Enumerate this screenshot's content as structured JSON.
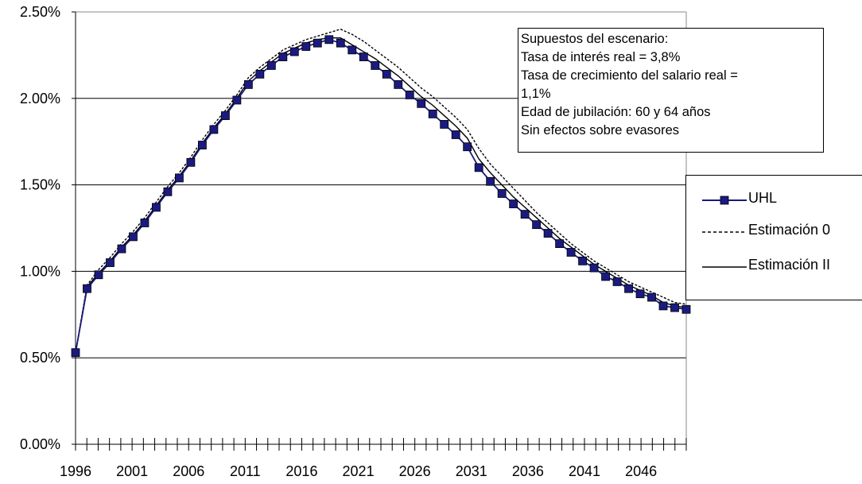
{
  "chart_data": {
    "type": "line",
    "title": "",
    "xlabel": "",
    "ylabel": "",
    "ylim": [
      0,
      2.5
    ],
    "y_ticks": [
      "0.00%",
      "0.50%",
      "1.00%",
      "1.50%",
      "2.00%",
      "2.50%"
    ],
    "x_tick_labels": [
      "1996",
      "2001",
      "2006",
      "2011",
      "2016",
      "2021",
      "2026",
      "2031",
      "2036",
      "2041",
      "2046"
    ],
    "x_start": 1996,
    "x_end": 2050,
    "grid": "horizontal",
    "legend_position": "right",
    "series": [
      {
        "name": "UHL",
        "style": "solid-square-markers",
        "color": "#1a1a80",
        "values": [
          0.53,
          0.9,
          0.98,
          1.05,
          1.13,
          1.2,
          1.28,
          1.37,
          1.46,
          1.54,
          1.63,
          1.73,
          1.82,
          1.9,
          1.99,
          2.08,
          2.14,
          2.19,
          2.24,
          2.27,
          2.3,
          2.32,
          2.34,
          2.32,
          2.28,
          2.24,
          2.19,
          2.14,
          2.08,
          2.02,
          1.97,
          1.91,
          1.85,
          1.79,
          1.72,
          1.6,
          1.52,
          1.45,
          1.39,
          1.33,
          1.27,
          1.22,
          1.16,
          1.11,
          1.06,
          1.02,
          0.97,
          0.94,
          0.9,
          0.87,
          0.85,
          0.8,
          0.79,
          0.78
        ]
      },
      {
        "name": "Estimación 0",
        "style": "dotted",
        "color": "#000000",
        "values": [
          0.53,
          0.92,
          1.01,
          1.08,
          1.16,
          1.23,
          1.31,
          1.4,
          1.49,
          1.57,
          1.66,
          1.76,
          1.85,
          1.93,
          2.02,
          2.12,
          2.18,
          2.23,
          2.28,
          2.31,
          2.34,
          2.36,
          2.38,
          2.4,
          2.37,
          2.33,
          2.28,
          2.23,
          2.18,
          2.12,
          2.06,
          2.01,
          1.95,
          1.89,
          1.82,
          1.71,
          1.62,
          1.55,
          1.48,
          1.41,
          1.34,
          1.28,
          1.22,
          1.16,
          1.11,
          1.06,
          1.02,
          0.98,
          0.94,
          0.91,
          0.88,
          0.85,
          0.82,
          0.81
        ]
      },
      {
        "name": "Estimación II",
        "style": "solid",
        "color": "#000000",
        "values": [
          0.53,
          0.91,
          0.99,
          1.06,
          1.14,
          1.21,
          1.29,
          1.38,
          1.47,
          1.55,
          1.64,
          1.74,
          1.83,
          1.91,
          2.0,
          2.1,
          2.16,
          2.21,
          2.26,
          2.29,
          2.32,
          2.34,
          2.35,
          2.35,
          2.31,
          2.27,
          2.23,
          2.18,
          2.13,
          2.07,
          2.01,
          1.96,
          1.9,
          1.84,
          1.77,
          1.65,
          1.57,
          1.5,
          1.43,
          1.37,
          1.31,
          1.25,
          1.19,
          1.14,
          1.09,
          1.04,
          1.0,
          0.96,
          0.92,
          0.89,
          0.86,
          0.82,
          0.8,
          0.79
        ]
      }
    ]
  },
  "annotation": {
    "lines": [
      "Supuestos del escenario:",
      "Tasa de interés real  = 3,8%",
      "Tasa de crecimiento del salario real =",
      "1,1%",
      "Edad de jubilación: 60  y 64 años",
      "Sin efectos sobre evasores"
    ]
  }
}
